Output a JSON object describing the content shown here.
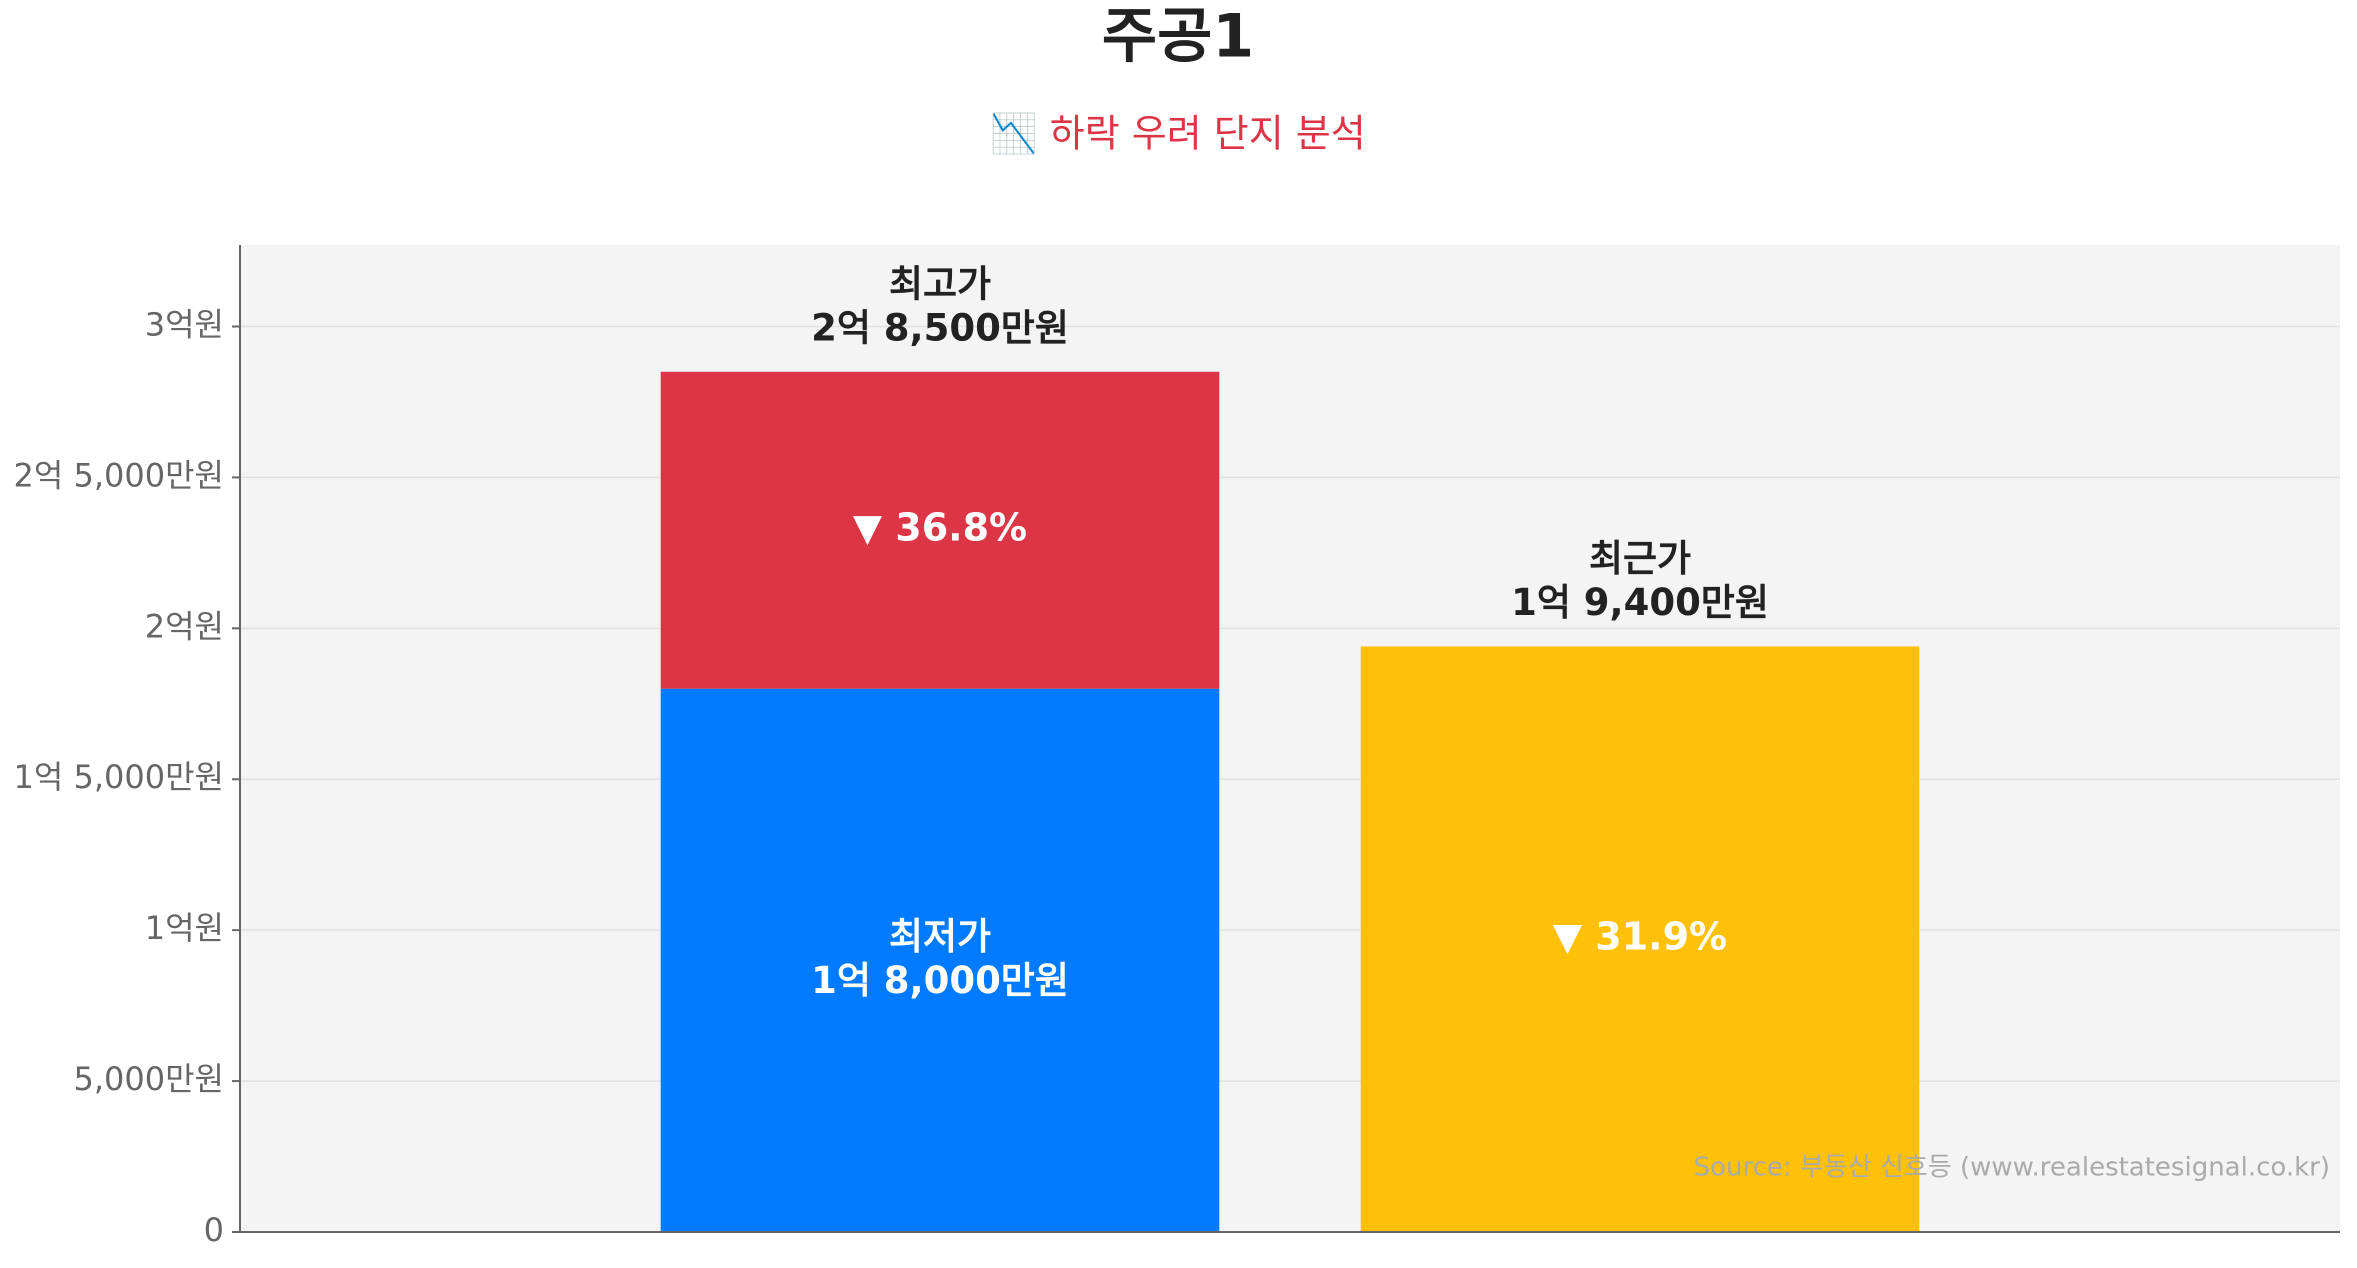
{
  "chart_data": {
    "type": "stacked_bar",
    "title": "주공1",
    "subtitle": "📉 하락 우려 단지 분석",
    "categories": [
      null,
      null
    ],
    "series": [
      {
        "name": "최저가",
        "color": "#007bff",
        "values": [
          18000,
          null
        ],
        "value_labels": [
          "1억 8,000만원",
          null
        ],
        "label_position": "inside"
      },
      {
        "color": "#dc3545",
        "values": [
          10500,
          null
        ]
      },
      {
        "name": "최근가",
        "color": "#ffc107",
        "values": [
          null,
          19400
        ],
        "value_labels": [
          null,
          "1억 9,400만원"
        ],
        "label_position": "above"
      }
    ],
    "top_label": {
      "name": "최고가",
      "value": 28500,
      "label": "2억 8,500만원"
    },
    "annotations": [
      {
        "text": "▼ 36.8%"
      },
      {
        "text": "▼ 31.9%"
      }
    ],
    "ylim": [
      0,
      32700
    ],
    "yticks": [
      {
        "value": 0,
        "label": "0"
      },
      {
        "value": 5000,
        "label": "5,000만원"
      },
      {
        "value": 10000,
        "label": "1억원"
      },
      {
        "value": 15000,
        "label": "1억 5,000만원"
      },
      {
        "value": 20000,
        "label": "2억원"
      },
      {
        "value": 25000,
        "label": "2억 5,000만원"
      },
      {
        "value": 30000,
        "label": "3억원"
      }
    ],
    "grid": true,
    "source": "Source: 부동산 신호등 (www.realestatesignal.co.kr)"
  }
}
